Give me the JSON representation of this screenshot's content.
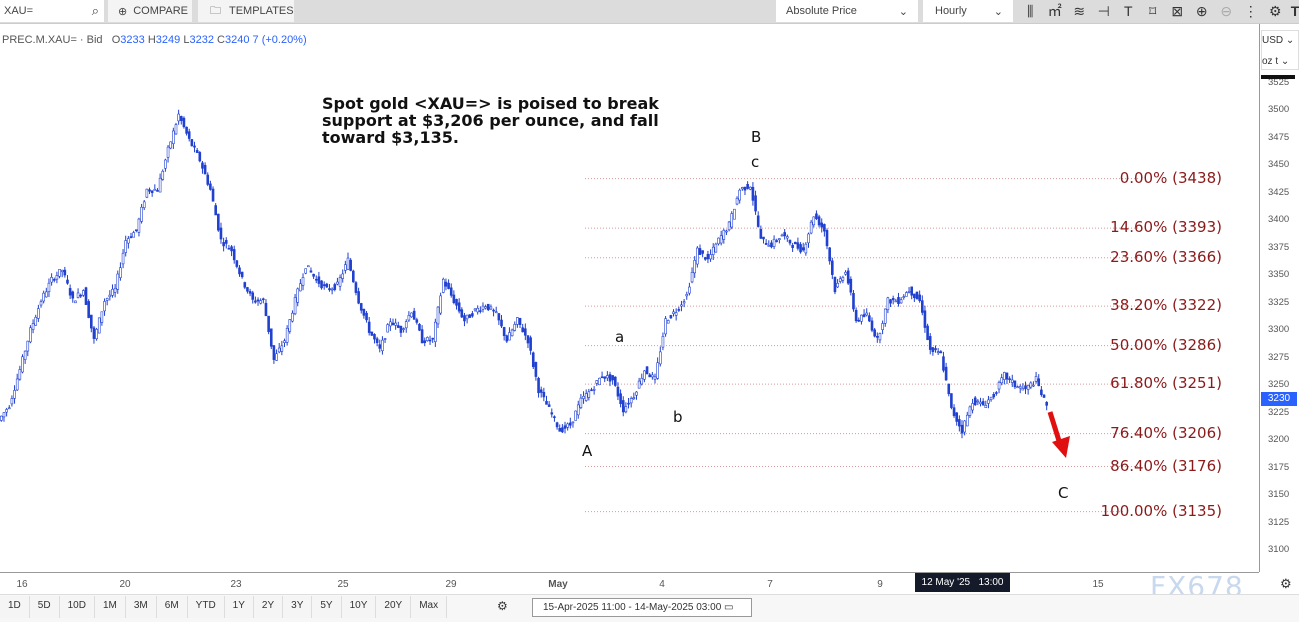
{
  "toolbar": {
    "symbol": "XAU=",
    "compare": "COMPARE",
    "templates": "TEMPLATES",
    "price_mode": "Absolute Price",
    "interval": "Hourly",
    "currency": "USD",
    "unit": "oz t"
  },
  "legend": {
    "name": "PREC.M.XAU= · Bid",
    "o": "O",
    "ov": "3233",
    "h": "H",
    "hv": "3249",
    "l": "L",
    "lv": "3232",
    "c": "C",
    "cv": "3240",
    "chg": "7 (+0.20%)"
  },
  "annotation": "Spot gold <XAU=> is poised to break support at $3,206 per ounce, and fall toward $3,135.",
  "wave_labels": {
    "A": "A",
    "a": "a",
    "b": "b",
    "B": "B",
    "c": "c",
    "C": "C"
  },
  "crosshair_label": "12 May '25   13:00",
  "last_price": "3230",
  "range_buttons": [
    "1D",
    "5D",
    "10D",
    "1M",
    "3M",
    "6M",
    "YTD",
    "1Y",
    "2Y",
    "3Y",
    "5Y",
    "10Y",
    "20Y",
    "Max"
  ],
  "date_range": "15-Apr-2025 11:00 - 14-May-2025 03:00",
  "watermark": "FX678",
  "colors": {
    "candles": "#2040d0",
    "fib": "#8b1a1a",
    "arrow": "#e01010",
    "price_tag": "#2962ff"
  },
  "chart_data": {
    "type": "candlestick",
    "ylim": [
      3088,
      3535
    ],
    "yticks": [
      3525,
      3500,
      3475,
      3450,
      3425,
      3400,
      3375,
      3350,
      3325,
      3300,
      3275,
      3250,
      3225,
      3200,
      3175,
      3150,
      3125,
      3100
    ],
    "xticks": [
      "16",
      "20",
      "23",
      "25",
      "29",
      "May",
      "4",
      "7",
      "9",
      "15"
    ],
    "closes": [
      3218,
      3232,
      3264,
      3300,
      3327,
      3346,
      3355,
      3327,
      3337,
      3291,
      3327,
      3337,
      3382,
      3391,
      3428,
      3428,
      3464,
      3496,
      3473,
      3455,
      3428,
      3382,
      3373,
      3346,
      3327,
      3327,
      3273,
      3291,
      3327,
      3359,
      3346,
      3337,
      3341,
      3364,
      3327,
      3300,
      3282,
      3309,
      3300,
      3318,
      3291,
      3291,
      3346,
      3327,
      3309,
      3318,
      3323,
      3314,
      3291,
      3309,
      3291,
      3246,
      3228,
      3209,
      3214,
      3236,
      3246,
      3259,
      3255,
      3228,
      3241,
      3264,
      3255,
      3309,
      3318,
      3332,
      3373,
      3364,
      3382,
      3396,
      3428,
      3432,
      3382,
      3378,
      3387,
      3378,
      3373,
      3405,
      3391,
      3337,
      3355,
      3309,
      3314,
      3291,
      3327,
      3327,
      3337,
      3327,
      3282,
      3278,
      3228,
      3209,
      3236,
      3232,
      3241,
      3259,
      3250,
      3246,
      3255,
      3230
    ],
    "fib_levels": [
      {
        "label": "0.00% (3438)",
        "price": 3438
      },
      {
        "label": "14.60% (3393)",
        "price": 3393
      },
      {
        "label": "23.60% (3366)",
        "price": 3366
      },
      {
        "label": "38.20% (3322)",
        "price": 3322
      },
      {
        "label": "50.00% (3286)",
        "price": 3286
      },
      {
        "label": "61.80% (3251)",
        "price": 3251
      },
      {
        "label": "76.40% (3206)",
        "price": 3206
      },
      {
        "label": "86.40% (3176)",
        "price": 3176
      },
      {
        "label": "100.00% (3135)",
        "price": 3135
      }
    ]
  }
}
